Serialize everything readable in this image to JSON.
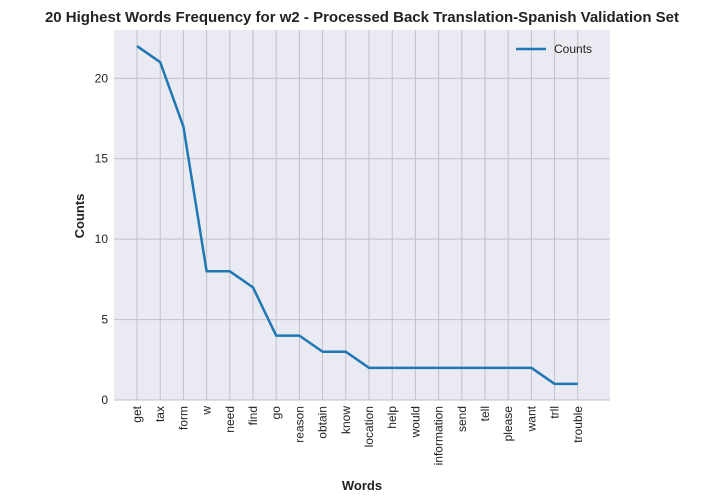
{
  "chart_data": {
    "type": "line",
    "title": "20 Highest Words Frequency for w2 - Processed Back Translation-Spanish Validation Set",
    "xlabel": "Words",
    "ylabel": "Counts",
    "categories": [
      "get",
      "tax",
      "form",
      "w",
      "need",
      "find",
      "go",
      "reason",
      "obtain",
      "know",
      "location",
      "help",
      "would",
      "information",
      "send",
      "tell",
      "please",
      "want",
      "trll",
      "trouble"
    ],
    "series": [
      {
        "name": "Counts",
        "values": [
          22,
          21,
          17,
          8,
          8,
          7,
          4,
          4,
          3,
          3,
          2,
          2,
          2,
          2,
          2,
          2,
          2,
          2,
          1,
          1
        ],
        "color": "#1f77b4"
      }
    ],
    "ylim": [
      0,
      23
    ],
    "yticks": [
      0,
      5,
      10,
      15,
      20
    ],
    "grid": true,
    "legend_position": "top-right",
    "background_color": "#eaeaf2",
    "grid_color": "#c0c0c8"
  }
}
